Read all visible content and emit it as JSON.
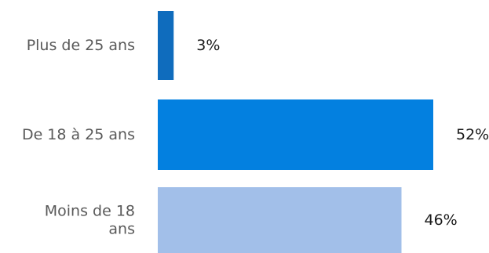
{
  "chart_data": {
    "type": "bar",
    "orientation": "horizontal",
    "categories": [
      "Plus de 25 ans",
      "De 18 à 25 ans",
      "Moins de 18 ans"
    ],
    "category_label_lines": [
      [
        "Plus de 25 ans"
      ],
      [
        "De 18 à 25 ans"
      ],
      [
        "Moins de 18",
        "ans"
      ]
    ],
    "values": [
      3,
      52,
      46
    ],
    "data_labels": [
      "3%",
      "52%",
      "46%"
    ],
    "unit": "%",
    "bar_colors": [
      "#0f6cbd",
      "#0380e0",
      "#a2bfe9"
    ],
    "xlim": [
      0,
      60
    ],
    "grid": false,
    "legend": false,
    "title": "",
    "xlabel": "",
    "ylabel": ""
  }
}
